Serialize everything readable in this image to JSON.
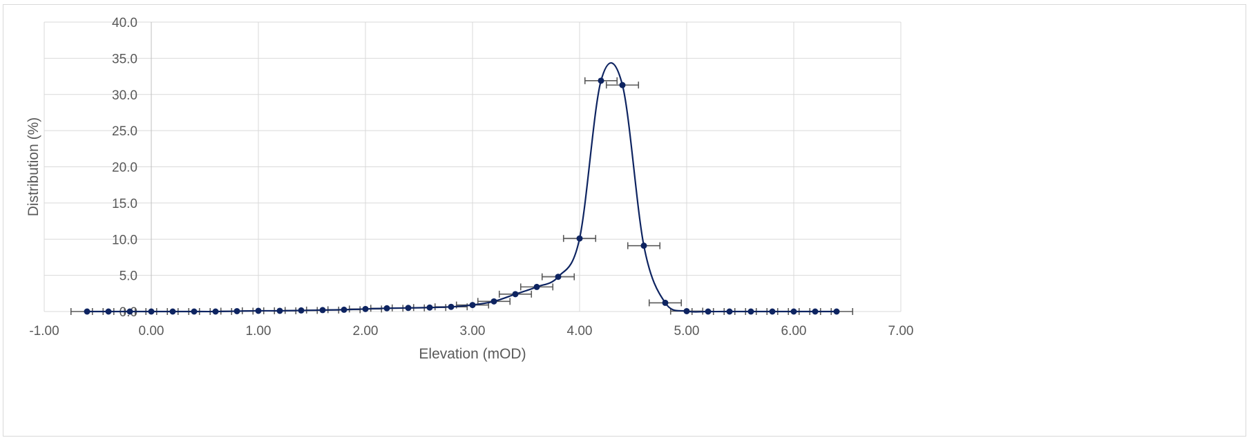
{
  "chart_data": {
    "type": "scatter",
    "title": "",
    "xlabel": "Elevation (mOD)",
    "ylabel": "Distribution (%)",
    "xlim": [
      -1.0,
      7.0
    ],
    "ylim": [
      0.0,
      40.0
    ],
    "x_ticks": [
      "-1.00",
      "0.00",
      "1.00",
      "2.00",
      "3.00",
      "4.00",
      "5.00",
      "6.00",
      "7.00"
    ],
    "y_ticks": [
      "0.0",
      "5.0",
      "10.0",
      "15.0",
      "20.0",
      "25.0",
      "30.0",
      "35.0",
      "40.0"
    ],
    "grid": true,
    "smooth_line": true,
    "x_error": 0.15,
    "series_color": "#0e2461",
    "error_bar_color": "#595959",
    "grid_color": "#d9d9d9",
    "x": [
      -0.6,
      -0.4,
      -0.2,
      0.0,
      0.2,
      0.4,
      0.6,
      0.8,
      1.0,
      1.2,
      1.4,
      1.6,
      1.8,
      2.0,
      2.2,
      2.4,
      2.6,
      2.8,
      3.0,
      3.2,
      3.4,
      3.6,
      3.8,
      4.0,
      4.2,
      4.4,
      4.6,
      4.8,
      5.0,
      5.2,
      5.4,
      5.6,
      5.8,
      6.0,
      6.2,
      6.4
    ],
    "y": [
      0.0,
      0.0,
      0.0,
      0.0,
      0.0,
      0.0,
      0.0,
      0.05,
      0.1,
      0.1,
      0.15,
      0.2,
      0.25,
      0.35,
      0.45,
      0.5,
      0.55,
      0.65,
      0.9,
      1.4,
      2.4,
      3.4,
      4.8,
      10.1,
      31.9,
      31.3,
      9.1,
      1.2,
      0.05,
      0.0,
      0.0,
      0.0,
      0.0,
      0.0,
      0.0,
      0.0
    ]
  }
}
